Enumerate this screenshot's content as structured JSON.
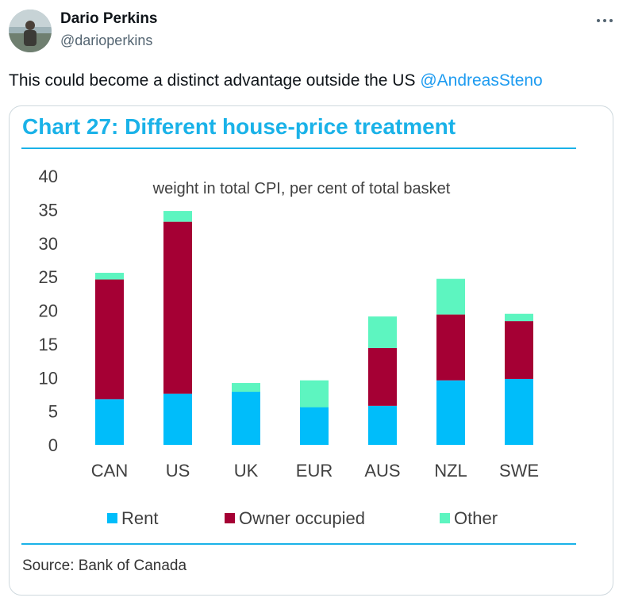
{
  "tweet": {
    "user_name": "Dario Perkins",
    "user_handle": "@darioperkins",
    "text": "This could become a distinct advantage outside the US ",
    "mention": "@AndreasSteno"
  },
  "chart_data": {
    "type": "bar",
    "stacked": true,
    "title": "Chart 27: Different house-price treatment",
    "subtitle": "weight in total CPI, per cent of total basket",
    "xlabel": "",
    "ylabel": "",
    "ylim": [
      0,
      40
    ],
    "yticks": [
      "0",
      "5",
      "10",
      "15",
      "20",
      "25",
      "30",
      "35",
      "40"
    ],
    "categories": [
      "CAN",
      "US",
      "UK",
      "EUR",
      "AUS",
      "NZL",
      "SWE"
    ],
    "series": [
      {
        "name": "Rent",
        "color": "#00bdfa",
        "values": [
          6.8,
          7.6,
          7.9,
          5.6,
          5.8,
          9.6,
          9.8
        ]
      },
      {
        "name": "Owner occupied",
        "color": "#a50034",
        "values": [
          17.8,
          25.6,
          0,
          0,
          8.6,
          9.8,
          8.6
        ]
      },
      {
        "name": "Other",
        "color": "#5df5c0",
        "values": [
          1.0,
          1.6,
          1.3,
          4.0,
          4.7,
          5.3,
          1.1
        ]
      }
    ],
    "legend_position": "bottom",
    "source": "Source: Bank of Canada"
  }
}
